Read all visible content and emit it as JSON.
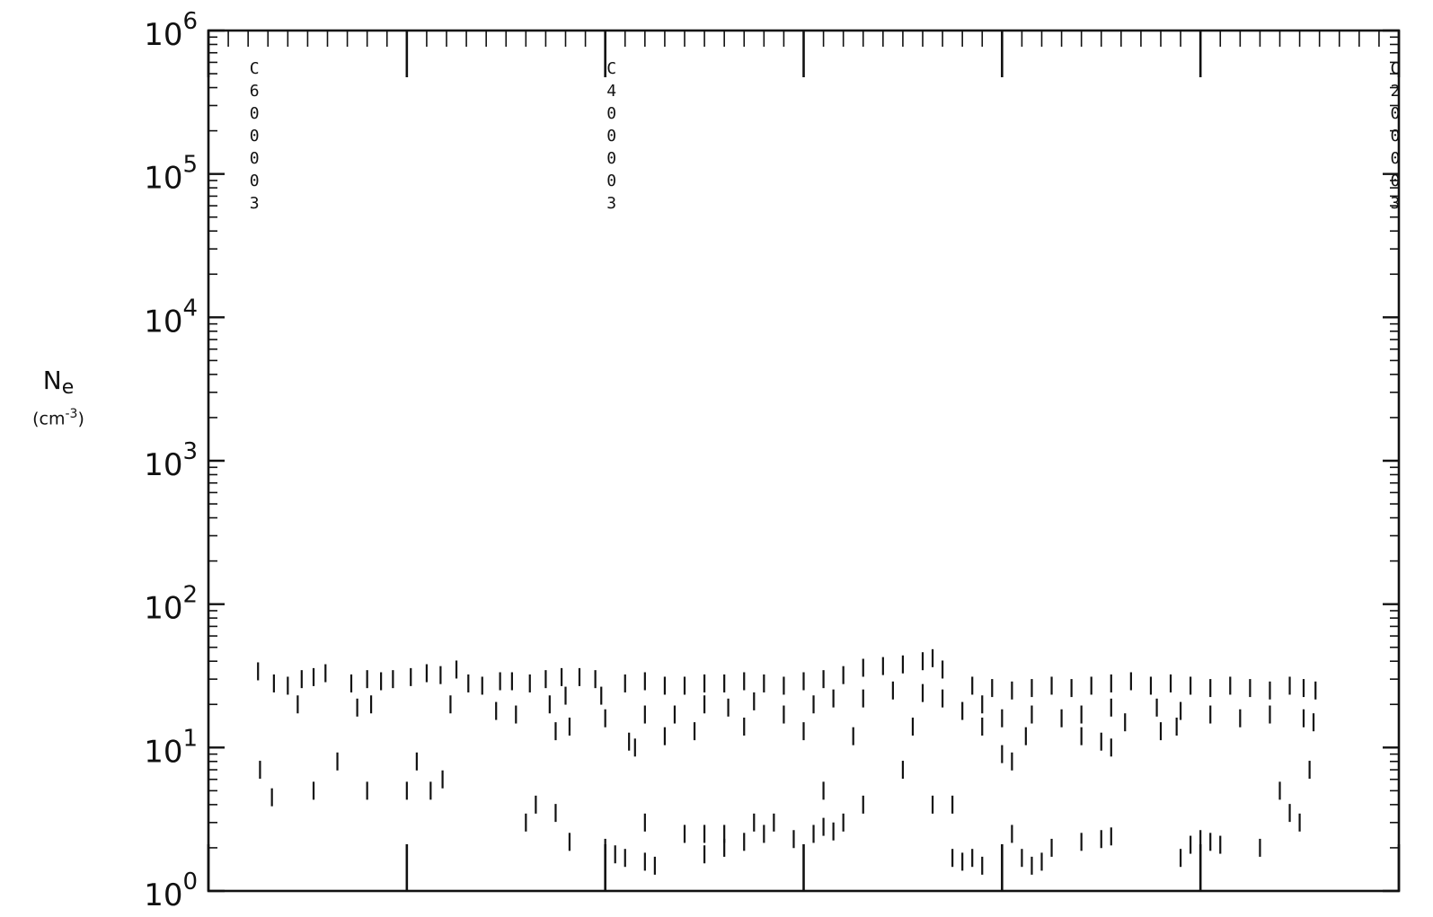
{
  "chart_data": {
    "type": "scatter",
    "marker": "vertical-dash",
    "title": "",
    "xlabel": "",
    "ylabel": {
      "symbol": "N",
      "subscript": "e",
      "unit_base": "(cm",
      "unit_exp": "-3",
      "unit_close": ")"
    },
    "yscale": "log",
    "ylim": [
      1,
      1000000
    ],
    "y_tick_labels": [
      {
        "value": 1,
        "base": "10",
        "exp": "0"
      },
      {
        "value": 10,
        "base": "10",
        "exp": "1"
      },
      {
        "value": 100,
        "base": "10",
        "exp": "2"
      },
      {
        "value": 1000,
        "base": "10",
        "exp": "3"
      },
      {
        "value": 10000,
        "base": "10",
        "exp": "4"
      },
      {
        "value": 100000,
        "base": "10",
        "exp": "5"
      },
      {
        "value": 1000000,
        "base": "10",
        "exp": "6"
      }
    ],
    "xlim": [
      0,
      6
    ],
    "x_major_ticks": [
      0,
      1,
      2,
      3,
      4,
      5,
      6
    ],
    "x_tick_labels_shown": false,
    "annotations": [
      {
        "x": 0.2,
        "text": "C600003"
      },
      {
        "x": 2.0,
        "text": "C400003"
      },
      {
        "x": 5.95,
        "text": "C200003"
      }
    ],
    "points": [
      [
        0.25,
        34
      ],
      [
        0.33,
        28
      ],
      [
        0.4,
        27
      ],
      [
        0.47,
        30
      ],
      [
        0.53,
        31
      ],
      [
        0.59,
        33
      ],
      [
        0.72,
        28
      ],
      [
        0.8,
        30
      ],
      [
        0.87,
        29
      ],
      [
        0.93,
        30
      ],
      [
        1.02,
        31
      ],
      [
        1.1,
        33
      ],
      [
        1.17,
        32
      ],
      [
        1.25,
        35
      ],
      [
        1.31,
        28
      ],
      [
        1.38,
        27
      ],
      [
        1.47,
        29
      ],
      [
        1.53,
        29
      ],
      [
        1.62,
        28
      ],
      [
        1.7,
        30
      ],
      [
        1.78,
        31
      ],
      [
        1.87,
        31
      ],
      [
        1.95,
        30
      ],
      [
        2.1,
        28
      ],
      [
        2.2,
        29
      ],
      [
        2.3,
        27
      ],
      [
        2.4,
        27
      ],
      [
        2.5,
        28
      ],
      [
        2.6,
        28
      ],
      [
        2.7,
        29
      ],
      [
        2.8,
        28
      ],
      [
        2.9,
        27
      ],
      [
        3.0,
        29
      ],
      [
        3.1,
        30
      ],
      [
        3.2,
        32
      ],
      [
        3.3,
        36
      ],
      [
        3.4,
        37
      ],
      [
        3.5,
        38
      ],
      [
        3.6,
        40
      ],
      [
        3.65,
        42
      ],
      [
        3.7,
        35
      ],
      [
        3.85,
        27
      ],
      [
        3.95,
        26
      ],
      [
        4.05,
        25
      ],
      [
        4.15,
        26
      ],
      [
        4.25,
        27
      ],
      [
        4.35,
        26
      ],
      [
        4.45,
        27
      ],
      [
        4.55,
        28
      ],
      [
        4.65,
        29
      ],
      [
        4.75,
        27
      ],
      [
        4.85,
        28
      ],
      [
        4.95,
        27
      ],
      [
        5.05,
        26
      ],
      [
        5.15,
        27
      ],
      [
        5.25,
        26
      ],
      [
        5.35,
        25
      ],
      [
        5.45,
        27
      ],
      [
        5.52,
        26
      ],
      [
        5.58,
        25
      ],
      [
        0.45,
        20
      ],
      [
        0.75,
        19
      ],
      [
        0.82,
        20
      ],
      [
        1.22,
        20
      ],
      [
        1.45,
        18
      ],
      [
        1.55,
        17
      ],
      [
        1.72,
        20
      ],
      [
        1.8,
        23
      ],
      [
        1.98,
        23
      ],
      [
        2.2,
        17
      ],
      [
        2.35,
        17
      ],
      [
        2.5,
        20
      ],
      [
        2.62,
        19
      ],
      [
        2.75,
        21
      ],
      [
        2.9,
        17
      ],
      [
        3.05,
        20
      ],
      [
        3.15,
        22
      ],
      [
        3.3,
        22
      ],
      [
        3.45,
        25
      ],
      [
        3.6,
        24
      ],
      [
        3.7,
        22
      ],
      [
        3.8,
        18
      ],
      [
        3.9,
        20
      ],
      [
        4.0,
        16
      ],
      [
        4.15,
        17
      ],
      [
        4.3,
        16
      ],
      [
        4.4,
        17
      ],
      [
        4.55,
        19
      ],
      [
        4.62,
        15
      ],
      [
        4.78,
        19
      ],
      [
        4.9,
        18
      ],
      [
        5.05,
        17
      ],
      [
        5.2,
        16
      ],
      [
        5.35,
        17
      ],
      [
        5.52,
        16
      ],
      [
        5.57,
        15
      ],
      [
        1.75,
        13
      ],
      [
        1.82,
        14
      ],
      [
        2.0,
        16
      ],
      [
        2.3,
        12
      ],
      [
        2.45,
        13
      ],
      [
        2.7,
        14
      ],
      [
        3.0,
        13
      ],
      [
        3.25,
        12
      ],
      [
        3.55,
        14
      ],
      [
        3.9,
        14
      ],
      [
        4.12,
        12
      ],
      [
        4.4,
        12
      ],
      [
        4.5,
        11
      ],
      [
        4.8,
        13
      ],
      [
        4.88,
        14
      ],
      [
        2.12,
        11
      ],
      [
        2.15,
        10
      ],
      [
        4.0,
        9
      ],
      [
        4.05,
        8
      ],
      [
        4.55,
        10
      ],
      [
        0.26,
        7
      ],
      [
        0.65,
        8
      ],
      [
        1.05,
        8
      ],
      [
        1.18,
        6
      ],
      [
        3.5,
        7
      ],
      [
        5.55,
        7
      ],
      [
        0.32,
        4.5
      ],
      [
        0.53,
        5
      ],
      [
        0.8,
        5
      ],
      [
        1.0,
        5
      ],
      [
        1.12,
        5
      ],
      [
        1.65,
        4
      ],
      [
        3.1,
        5
      ],
      [
        3.65,
        4
      ],
      [
        3.75,
        4
      ],
      [
        5.4,
        5
      ],
      [
        1.6,
        3
      ],
      [
        1.75,
        3.5
      ],
      [
        2.2,
        3
      ],
      [
        2.4,
        2.5
      ],
      [
        2.5,
        2.5
      ],
      [
        2.6,
        2.5
      ],
      [
        2.75,
        3
      ],
      [
        2.85,
        3
      ],
      [
        3.2,
        3
      ],
      [
        3.3,
        4
      ],
      [
        5.45,
        3.5
      ],
      [
        5.5,
        3
      ],
      [
        1.82,
        2.2
      ],
      [
        2.0,
        2
      ],
      [
        2.05,
        1.8
      ],
      [
        2.1,
        1.7
      ],
      [
        2.2,
        1.6
      ],
      [
        2.25,
        1.5
      ],
      [
        2.5,
        1.8
      ],
      [
        2.6,
        2.0
      ],
      [
        2.7,
        2.2
      ],
      [
        2.8,
        2.5
      ],
      [
        2.95,
        2.3
      ],
      [
        3.05,
        2.5
      ],
      [
        3.1,
        2.8
      ],
      [
        3.15,
        2.6
      ],
      [
        3.75,
        1.7
      ],
      [
        3.8,
        1.6
      ],
      [
        3.85,
        1.7
      ],
      [
        3.9,
        1.5
      ],
      [
        4.05,
        2.5
      ],
      [
        4.1,
        1.7
      ],
      [
        4.15,
        1.5
      ],
      [
        4.2,
        1.6
      ],
      [
        4.25,
        2.0
      ],
      [
        4.4,
        2.2
      ],
      [
        4.5,
        2.3
      ],
      [
        4.55,
        2.4
      ],
      [
        4.9,
        1.7
      ],
      [
        4.95,
        2.1
      ],
      [
        5.0,
        2.3
      ],
      [
        5.05,
        2.2
      ],
      [
        5.1,
        2.1
      ],
      [
        5.3,
        2.0
      ]
    ]
  }
}
